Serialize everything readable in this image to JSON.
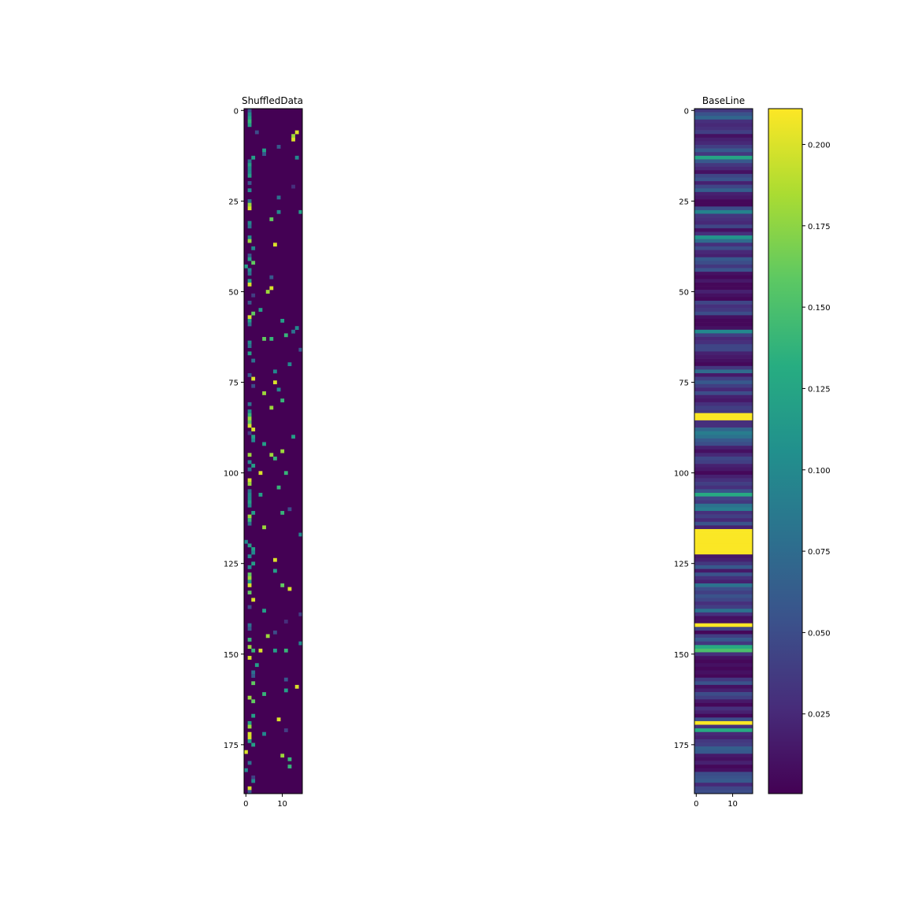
{
  "chart_data": [
    {
      "type": "heatmap",
      "title": "ShuffledData",
      "rows": 189,
      "cols": 16,
      "x_ticks": [
        0,
        10
      ],
      "y_ticks": [
        0,
        25,
        50,
        75,
        100,
        125,
        150,
        175
      ],
      "background_value": 0.0,
      "cells": [
        [
          0,
          1,
          0.06
        ],
        [
          1,
          1,
          0.1
        ],
        [
          2,
          1,
          0.12
        ],
        [
          3,
          1,
          0.14
        ],
        [
          4,
          1,
          0.12
        ],
        [
          6,
          3,
          0.05
        ],
        [
          6,
          14,
          0.2
        ],
        [
          7,
          13,
          0.18
        ],
        [
          8,
          13,
          0.2
        ],
        [
          10,
          9,
          0.06
        ],
        [
          11,
          5,
          0.12
        ],
        [
          12,
          5,
          0.06
        ],
        [
          13,
          2,
          0.12
        ],
        [
          13,
          14,
          0.1
        ],
        [
          14,
          1,
          0.08
        ],
        [
          15,
          1,
          0.12
        ],
        [
          16,
          1,
          0.1
        ],
        [
          17,
          1,
          0.1
        ],
        [
          18,
          1,
          0.12
        ],
        [
          20,
          1,
          0.06
        ],
        [
          21,
          13,
          0.03
        ],
        [
          22,
          1,
          0.1
        ],
        [
          24,
          9,
          0.08
        ],
        [
          25,
          1,
          0.08
        ],
        [
          26,
          1,
          0.18
        ],
        [
          27,
          1,
          0.2
        ],
        [
          28,
          9,
          0.1
        ],
        [
          28,
          15,
          0.12
        ],
        [
          30,
          7,
          0.16
        ],
        [
          31,
          1,
          0.1
        ],
        [
          32,
          1,
          0.08
        ],
        [
          35,
          1,
          0.1
        ],
        [
          36,
          1,
          0.18
        ],
        [
          37,
          8,
          0.2
        ],
        [
          38,
          2,
          0.1
        ],
        [
          40,
          1,
          0.06
        ],
        [
          41,
          1,
          0.12
        ],
        [
          42,
          2,
          0.16
        ],
        [
          43,
          0,
          0.12
        ],
        [
          44,
          1,
          0.1
        ],
        [
          45,
          1,
          0.08
        ],
        [
          46,
          7,
          0.06
        ],
        [
          47,
          1,
          0.12
        ],
        [
          48,
          1,
          0.2
        ],
        [
          49,
          7,
          0.2
        ],
        [
          50,
          6,
          0.18
        ],
        [
          51,
          2,
          0.04
        ],
        [
          53,
          1,
          0.06
        ],
        [
          55,
          4,
          0.12
        ],
        [
          56,
          2,
          0.16
        ],
        [
          57,
          1,
          0.2
        ],
        [
          58,
          1,
          0.12
        ],
        [
          58,
          10,
          0.12
        ],
        [
          59,
          1,
          0.08
        ],
        [
          60,
          14,
          0.1
        ],
        [
          61,
          13,
          0.08
        ],
        [
          62,
          11,
          0.14
        ],
        [
          63,
          5,
          0.16
        ],
        [
          63,
          7,
          0.14
        ],
        [
          64,
          1,
          0.1
        ],
        [
          65,
          1,
          0.08
        ],
        [
          66,
          15,
          0.06
        ],
        [
          67,
          1,
          0.12
        ],
        [
          69,
          2,
          0.08
        ],
        [
          70,
          12,
          0.1
        ],
        [
          72,
          8,
          0.1
        ],
        [
          73,
          1,
          0.06
        ],
        [
          74,
          2,
          0.2
        ],
        [
          75,
          8,
          0.2
        ],
        [
          76,
          2,
          0.05
        ],
        [
          77,
          9,
          0.1
        ],
        [
          78,
          5,
          0.18
        ],
        [
          80,
          10,
          0.14
        ],
        [
          81,
          1,
          0.08
        ],
        [
          82,
          7,
          0.18
        ],
        [
          83,
          1,
          0.1
        ],
        [
          84,
          1,
          0.14
        ],
        [
          85,
          1,
          0.18
        ],
        [
          86,
          1,
          0.16
        ],
        [
          87,
          1,
          0.2
        ],
        [
          88,
          2,
          0.2
        ],
        [
          89,
          1,
          0.04
        ],
        [
          90,
          2,
          0.12
        ],
        [
          90,
          13,
          0.12
        ],
        [
          91,
          2,
          0.1
        ],
        [
          92,
          5,
          0.12
        ],
        [
          94,
          10,
          0.18
        ],
        [
          95,
          1,
          0.18
        ],
        [
          95,
          7,
          0.18
        ],
        [
          96,
          8,
          0.14
        ],
        [
          97,
          1,
          0.1
        ],
        [
          98,
          2,
          0.12
        ],
        [
          99,
          1,
          0.08
        ],
        [
          100,
          4,
          0.2
        ],
        [
          100,
          11,
          0.14
        ],
        [
          102,
          1,
          0.2
        ],
        [
          103,
          1,
          0.18
        ],
        [
          104,
          9,
          0.14
        ],
        [
          105,
          1,
          0.08
        ],
        [
          106,
          1,
          0.1
        ],
        [
          106,
          4,
          0.12
        ],
        [
          107,
          1,
          0.1
        ],
        [
          108,
          1,
          0.12
        ],
        [
          109,
          1,
          0.1
        ],
        [
          110,
          12,
          0.05
        ],
        [
          111,
          2,
          0.12
        ],
        [
          111,
          10,
          0.14
        ],
        [
          112,
          1,
          0.18
        ],
        [
          113,
          1,
          0.14
        ],
        [
          114,
          1,
          0.08
        ],
        [
          115,
          5,
          0.18
        ],
        [
          117,
          15,
          0.1
        ],
        [
          119,
          0,
          0.1
        ],
        [
          120,
          1,
          0.12
        ],
        [
          121,
          2,
          0.12
        ],
        [
          122,
          2,
          0.1
        ],
        [
          123,
          1,
          0.1
        ],
        [
          124,
          8,
          0.2
        ],
        [
          125,
          2,
          0.12
        ],
        [
          126,
          1,
          0.1
        ],
        [
          127,
          8,
          0.12
        ],
        [
          128,
          1,
          0.16
        ],
        [
          129,
          1,
          0.18
        ],
        [
          130,
          1,
          0.12
        ],
        [
          131,
          1,
          0.2
        ],
        [
          131,
          10,
          0.16
        ],
        [
          132,
          12,
          0.2
        ],
        [
          133,
          1,
          0.16
        ],
        [
          135,
          2,
          0.2
        ],
        [
          137,
          1,
          0.05
        ],
        [
          138,
          5,
          0.12
        ],
        [
          139,
          15,
          0.04
        ],
        [
          141,
          11,
          0.03
        ],
        [
          142,
          1,
          0.08
        ],
        [
          143,
          1,
          0.06
        ],
        [
          144,
          8,
          0.05
        ],
        [
          145,
          6,
          0.18
        ],
        [
          146,
          1,
          0.14
        ],
        [
          147,
          15,
          0.1
        ],
        [
          148,
          1,
          0.18
        ],
        [
          149,
          2,
          0.14
        ],
        [
          149,
          4,
          0.2
        ],
        [
          149,
          8,
          0.12
        ],
        [
          149,
          11,
          0.14
        ],
        [
          151,
          1,
          0.2
        ],
        [
          153,
          3,
          0.12
        ],
        [
          155,
          2,
          0.08
        ],
        [
          156,
          2,
          0.06
        ],
        [
          157,
          11,
          0.06
        ],
        [
          158,
          2,
          0.16
        ],
        [
          159,
          14,
          0.2
        ],
        [
          160,
          11,
          0.12
        ],
        [
          161,
          5,
          0.14
        ],
        [
          162,
          1,
          0.18
        ],
        [
          163,
          2,
          0.16
        ],
        [
          167,
          2,
          0.12
        ],
        [
          168,
          9,
          0.2
        ],
        [
          169,
          1,
          0.12
        ],
        [
          170,
          1,
          0.18
        ],
        [
          171,
          11,
          0.04
        ],
        [
          172,
          1,
          0.2
        ],
        [
          172,
          5,
          0.1
        ],
        [
          173,
          1,
          0.2
        ],
        [
          174,
          1,
          0.12
        ],
        [
          175,
          2,
          0.12
        ],
        [
          177,
          0,
          0.2
        ],
        [
          178,
          10,
          0.18
        ],
        [
          179,
          12,
          0.14
        ],
        [
          180,
          1,
          0.08
        ],
        [
          181,
          12,
          0.14
        ],
        [
          182,
          0,
          0.1
        ],
        [
          184,
          2,
          0.04
        ],
        [
          185,
          2,
          0.1
        ],
        [
          187,
          1,
          0.2
        ],
        [
          188,
          1,
          0.06
        ]
      ]
    },
    {
      "type": "heatmap",
      "title": "BaseLine",
      "rows": 189,
      "cols": 16,
      "x_ticks": [
        0,
        10
      ],
      "y_ticks": [
        0,
        25,
        50,
        75,
        100,
        125,
        150,
        175
      ],
      "row_values": [
        0.035,
        0.055,
        0.07,
        0.03,
        0.025,
        0.03,
        0.04,
        0.01,
        0.02,
        0.025,
        0.04,
        0.06,
        0.035,
        0.125,
        0.06,
        0.035,
        0.025,
        0.01,
        0.045,
        0.055,
        0.02,
        0.045,
        0.065,
        0.02,
        0.015,
        0.005,
        0.005,
        0.05,
        0.095,
        0.035,
        0.03,
        0.025,
        0.045,
        0.01,
        0.03,
        0.11,
        0.075,
        0.03,
        0.05,
        0.025,
        0.02,
        0.06,
        0.05,
        0.035,
        0.055,
        0.01,
        0.005,
        0.015,
        0.005,
        0.005,
        0.02,
        0.01,
        0.005,
        0.045,
        0.03,
        0.035,
        0.05,
        0.01,
        0.005,
        0.005,
        0.01,
        0.1,
        0.04,
        0.025,
        0.03,
        0.045,
        0.045,
        0.02,
        0.015,
        0.01,
        0.005,
        0.035,
        0.075,
        0.015,
        0.04,
        0.06,
        0.04,
        0.025,
        0.05,
        0.02,
        0.015,
        0.03,
        0.04,
        0.035,
        0.21,
        0.21,
        0.03,
        0.03,
        0.07,
        0.09,
        0.08,
        0.06,
        0.05,
        0.02,
        0.01,
        0.025,
        0.045,
        0.04,
        0.02,
        0.015,
        0.005,
        0.02,
        0.03,
        0.04,
        0.03,
        0.055,
        0.13,
        0.045,
        0.035,
        0.08,
        0.09,
        0.03,
        0.04,
        0.025,
        0.055,
        0.02,
        0.21,
        0.21,
        0.21,
        0.21,
        0.21,
        0.21,
        0.21,
        0.015,
        0.02,
        0.035,
        0.06,
        0.015,
        0.055,
        0.03,
        0.02,
        0.08,
        0.05,
        0.04,
        0.055,
        0.045,
        0.03,
        0.04,
        0.08,
        0.03,
        0.01,
        0.01,
        0.21,
        0.045,
        0.005,
        0.04,
        0.06,
        0.035,
        0.13,
        0.15,
        0.03,
        0.01,
        0.005,
        0.01,
        0.005,
        0.01,
        0.005,
        0.035,
        0.055,
        0.01,
        0.02,
        0.05,
        0.04,
        0.015,
        0.005,
        0.03,
        0.02,
        0.005,
        0.05,
        0.21,
        0.03,
        0.13,
        0.025,
        0.02,
        0.035,
        0.04,
        0.065,
        0.06,
        0.015,
        0.01,
        0.02,
        0.005,
        0.01,
        0.05,
        0.055,
        0.06,
        0.025,
        0.045,
        0.05
      ]
    }
  ],
  "colorbar": {
    "ticks": [
      "0.025",
      "0.050",
      "0.075",
      "0.100",
      "0.125",
      "0.150",
      "0.175",
      "0.200"
    ],
    "tick_values": [
      0.025,
      0.05,
      0.075,
      0.1,
      0.125,
      0.15,
      0.175,
      0.2
    ],
    "range": [
      0.0005,
      0.211
    ]
  }
}
